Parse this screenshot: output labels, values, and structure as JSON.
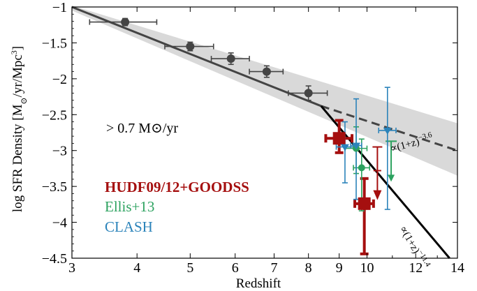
{
  "chart_data": {
    "type": "scatter",
    "xlabel": "Redshift",
    "ylabel": "log SFR Density [M⊙/yr/Mpc3]",
    "xlim": [
      3,
      14
    ],
    "xscale": "log(1+z)",
    "ylim": [
      -4.5,
      -1
    ],
    "xticks": [
      3,
      4,
      5,
      6,
      7,
      8,
      9,
      10,
      12,
      14
    ],
    "yticks": [
      -4.5,
      -4,
      -3.5,
      -3,
      -2.5,
      -2,
      -1.5,
      -1
    ],
    "annotation": "> 0.7 M⊙/yr",
    "colors": {
      "gray": "#444444",
      "red": "#a50f0f",
      "green": "#2ca25f",
      "blue": "#2b83ba",
      "band": "#d9d9d9"
    },
    "series": [
      {
        "name": "",
        "color": "#444444",
        "points": [
          {
            "x": 3.8,
            "y": -1.21,
            "xerr": [
              0.55,
              0.55
            ],
            "yerr": [
              0.05,
              0.05
            ]
          },
          {
            "x": 5.0,
            "y": -1.55,
            "xerr": [
              0.5,
              0.5
            ],
            "yerr": [
              0.06,
              0.06
            ]
          },
          {
            "x": 5.9,
            "y": -1.72,
            "xerr": [
              0.45,
              0.45
            ],
            "yerr": [
              0.08,
              0.08
            ]
          },
          {
            "x": 6.8,
            "y": -1.9,
            "xerr": [
              0.45,
              0.45
            ],
            "yerr": [
              0.08,
              0.08
            ]
          },
          {
            "x": 8.0,
            "y": -2.2,
            "xerr": [
              0.6,
              0.6
            ],
            "yerr": [
              0.1,
              0.1
            ]
          }
        ]
      },
      {
        "name": "HUDF09/12+GOODSS",
        "color": "#a50f0f",
        "points": [
          {
            "x": 9.0,
            "y": -2.83,
            "xerr": [
              0.45,
              0.45
            ],
            "yerr": [
              0.2,
              0.25
            ]
          },
          {
            "x": 9.9,
            "y": -3.74,
            "xerr": [
              0.35,
              0.35
            ],
            "yerr": [
              0.7,
              0.35
            ]
          }
        ],
        "upper_limits": [
          {
            "x": 10.4,
            "y": -2.95,
            "x_to": -3.28,
            "ylow": -3.65
          }
        ]
      },
      {
        "name": "Ellis+13",
        "color": "#2ca25f",
        "points": [
          {
            "x": 9.6,
            "y": -2.97,
            "xerr": [
              0.4,
              0.4
            ],
            "yerr": [
              0.35,
              0.3
            ]
          },
          {
            "x": 9.8,
            "y": -3.24,
            "xerr": [
              0.3,
              0.3
            ],
            "yerr": [
              0.6,
              0.4
            ]
          }
        ],
        "upper_limits": [
          {
            "x": 10.95,
            "y": -2.87
          }
        ]
      },
      {
        "name": "CLASH",
        "color": "#2b83ba",
        "points": [
          {
            "x": 9.2,
            "y": -2.95,
            "xerr": [
              0.3,
              0.3
            ],
            "yerr": [
              0.5,
              0.35
            ]
          },
          {
            "x": 9.6,
            "y": -2.93,
            "xerr": [
              0.2,
              0.2
            ],
            "yerr": [
              0.75,
              0.65
            ]
          },
          {
            "x": 10.8,
            "y": -2.72,
            "xerr": [
              0.35,
              0.35
            ],
            "yerr": [
              1.1,
              0.6
            ]
          }
        ]
      }
    ],
    "fit_lines": [
      {
        "label": "∝(1+z)−3.6",
        "label_base": "∝(1+z)",
        "label_exp": "−3.6",
        "style": "solid",
        "x": [
          3,
          8.4
        ],
        "y": [
          -1.0,
          -2.38
        ]
      },
      {
        "label": "∝(1+z)−3.6",
        "style": "dashed",
        "x": [
          8.4,
          14
        ],
        "y": [
          -2.38,
          -3.0
        ]
      },
      {
        "label": "∝(1+z)−11.4",
        "label_base": "∝(1+z)",
        "label_exp": "−11.4",
        "style": "solid",
        "x": [
          8.4,
          13.6
        ],
        "y": [
          -2.38,
          -4.5
        ]
      }
    ],
    "confidence_band": {
      "x": [
        3,
        14
      ],
      "upper": [
        -0.98,
        -2.62
      ],
      "lower": [
        -1.05,
        -3.35
      ]
    },
    "legend": {
      "placement": "lower-left",
      "entries": [
        {
          "text": "HUDF09/12+GOODSS",
          "color": "#a50f0f",
          "bold": true
        },
        {
          "text": "Ellis+13",
          "color": "#2ca25f",
          "bold": false
        },
        {
          "text": "CLASH",
          "color": "#2b83ba",
          "bold": false
        }
      ]
    }
  }
}
